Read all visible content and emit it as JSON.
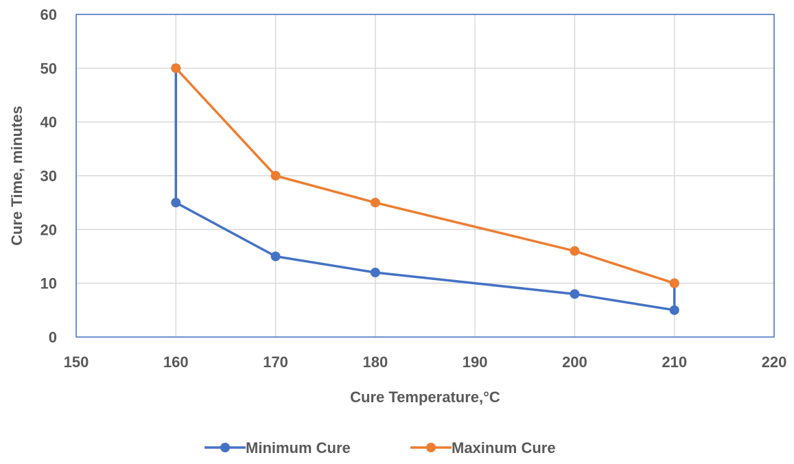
{
  "chart_data": {
    "type": "line",
    "title": "",
    "xlabel": "Cure Temperature,°C",
    "ylabel": "Cure Time, minutes",
    "xlim": [
      150,
      220
    ],
    "ylim": [
      0,
      60
    ],
    "xticks": [
      150,
      160,
      170,
      180,
      190,
      200,
      210,
      220
    ],
    "yticks": [
      0,
      10,
      20,
      30,
      40,
      50,
      60
    ],
    "grid": true,
    "legend_position": "bottom",
    "series": [
      {
        "name": "Minimum Cure",
        "color": "#4472C4",
        "points": [
          {
            "x": 160,
            "y": 50
          },
          {
            "x": 160,
            "y": 25
          },
          {
            "x": 170,
            "y": 15
          },
          {
            "x": 180,
            "y": 12
          },
          {
            "x": 200,
            "y": 8
          },
          {
            "x": 210,
            "y": 5
          },
          {
            "x": 210,
            "y": 10
          }
        ]
      },
      {
        "name": "Maxinum Cure",
        "color": "#ED7D31",
        "points": [
          {
            "x": 160,
            "y": 50
          },
          {
            "x": 170,
            "y": 30
          },
          {
            "x": 180,
            "y": 25
          },
          {
            "x": 200,
            "y": 16
          },
          {
            "x": 210,
            "y": 10
          }
        ]
      }
    ]
  }
}
